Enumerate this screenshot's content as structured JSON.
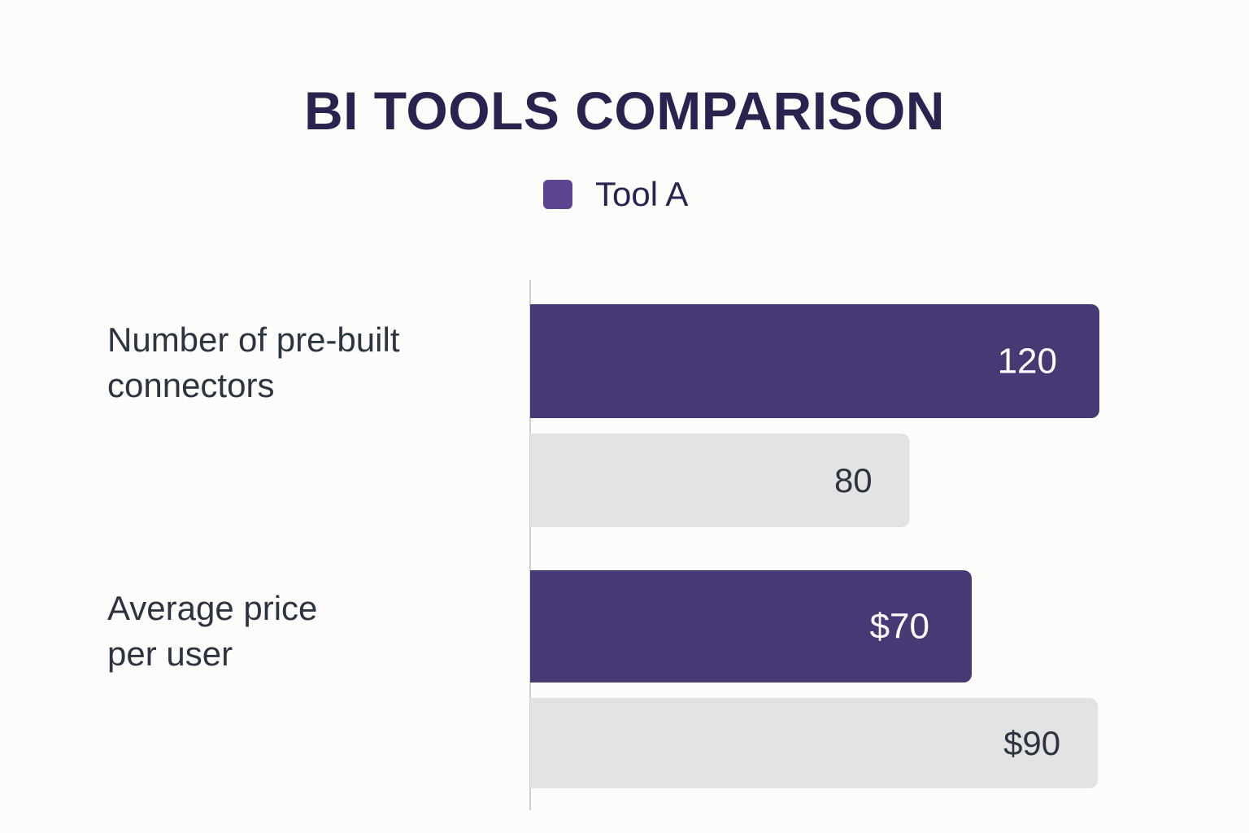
{
  "chart_data": {
    "type": "bar",
    "orientation": "horizontal",
    "title": "BI TOOLS COMPARISON",
    "legend": {
      "placement": "top-center",
      "entries": [
        {
          "label": "Tool A",
          "color": "#5c4491"
        }
      ]
    },
    "categories": [
      "Number of pre-built connectors",
      "Average price per user"
    ],
    "series": [
      {
        "name": "Tool A",
        "color": "#483873",
        "label_color": "#ffffff",
        "values": [
          120,
          70
        ],
        "labels": [
          "120",
          "$70"
        ]
      },
      {
        "color": "#e3e3e3",
        "label_color": "#2c3440",
        "values": [
          80,
          90
        ],
        "labels": [
          "80",
          "$90"
        ]
      }
    ],
    "grid": false
  }
}
